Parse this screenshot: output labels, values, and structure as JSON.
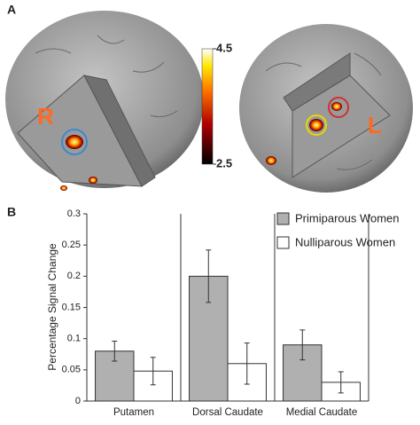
{
  "panel_labels": [
    "A",
    "B"
  ],
  "brain_labels": [
    "R",
    "L"
  ],
  "colorbar": {
    "clim": [
      2.5,
      4.5
    ],
    "ticks": [
      4.5,
      2.5
    ]
  },
  "chart_data": {
    "type": "bar",
    "ylabel": "Percentage Signal Change",
    "categories": [
      "Putamen",
      "Dorsal Caudate",
      "Medial Caudate"
    ],
    "series": [
      {
        "name": "Primiparous Women",
        "color": "#b0b0b0",
        "values": [
          0.08,
          0.2,
          0.09
        ],
        "errors": [
          0.016,
          0.042,
          0.024
        ]
      },
      {
        "name": "Nulliparous Women",
        "color": "#ffffff",
        "values": [
          0.048,
          0.06,
          0.03
        ],
        "errors": [
          0.022,
          0.033,
          0.017
        ]
      }
    ],
    "ylim": [
      0,
      0.3
    ],
    "yticks": [
      0,
      0.05,
      0.1,
      0.15,
      0.2,
      0.25,
      0.3
    ],
    "legend": "upper right"
  }
}
